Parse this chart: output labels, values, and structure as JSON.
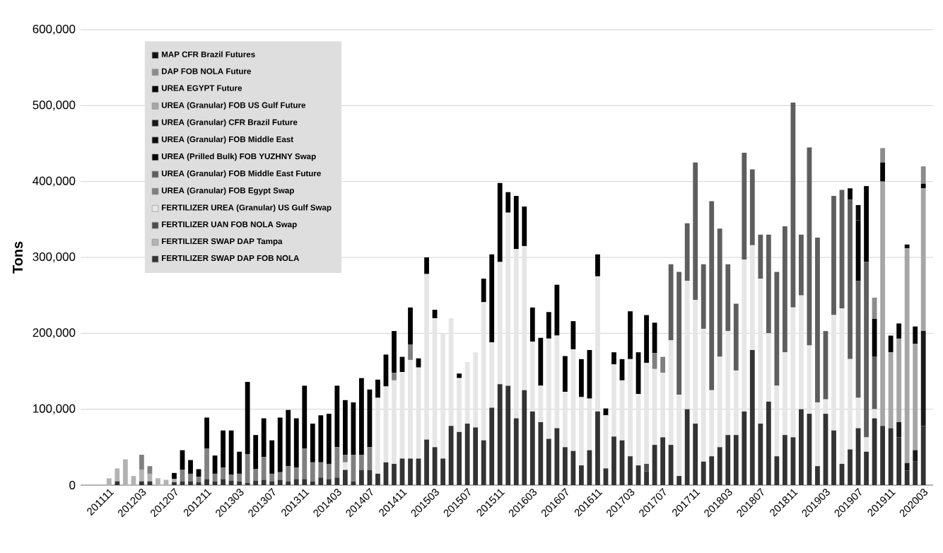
{
  "chart_data": {
    "type": "bar",
    "stacked": true,
    "ylabel": "Tons",
    "categories": [
      "201111",
      null,
      null,
      null,
      "201203",
      null,
      null,
      null,
      "201207",
      null,
      null,
      null,
      "201211",
      null,
      null,
      null,
      "201303",
      null,
      null,
      null,
      "201307",
      null,
      null,
      null,
      "201311",
      null,
      null,
      null,
      "201403",
      null,
      null,
      null,
      "201407",
      null,
      null,
      null,
      "201411",
      null,
      null,
      null,
      "201503",
      null,
      null,
      null,
      "201507",
      null,
      null,
      null,
      "201511",
      null,
      null,
      null,
      "201603",
      null,
      null,
      null,
      "201607",
      null,
      null,
      null,
      "201611",
      null,
      null,
      null,
      "201703",
      null,
      null,
      null,
      "201707",
      null,
      null,
      null,
      "201711",
      null,
      null,
      null,
      "201803",
      null,
      null,
      null,
      "201807",
      null,
      null,
      null,
      "201811",
      null,
      null,
      null,
      "201903",
      null,
      null,
      null,
      "201907",
      null,
      null,
      null,
      "201911",
      null,
      null,
      null,
      "202003"
    ],
    "ylim": [
      0,
      600000
    ],
    "yticks": [
      0,
      {
        "value": 100000,
        "label": "100,000"
      },
      {
        "value": 200000,
        "label": "200,000"
      },
      {
        "value": 300000,
        "label": "300,000"
      },
      {
        "value": 400000,
        "label": "400,000"
      },
      {
        "value": 500000,
        "label": "500,000"
      },
      {
        "value": 600000,
        "label": "600,000"
      }
    ],
    "grid": "y",
    "legend": "top left",
    "series": [
      {
        "name": "FERTILIZER SWAP DAP FOB NOLA",
        "color": "#333333",
        "values": [
          null,
          5000,
          null,
          null,
          5000,
          5000,
          null,
          null,
          4000,
          5000,
          5000,
          4000,
          8000,
          5000,
          8000,
          6000,
          5000,
          3000,
          6000,
          7000,
          5000,
          7000,
          5000,
          8000,
          8000,
          5000,
          10000,
          8000,
          10000,
          20000,
          5000,
          20000,
          20000,
          15000,
          30000,
          28000,
          35000,
          35000,
          35000,
          60000,
          50000,
          35000,
          78000,
          70000,
          81000,
          76000,
          59000,
          102000,
          133000,
          131000,
          88000,
          125000,
          97000,
          83000,
          61000,
          75000,
          50000,
          45000,
          26000,
          46000,
          97000,
          22000,
          64000,
          59000,
          38000,
          26000,
          18000,
          53000,
          63000,
          53000,
          12000,
          100000,
          81000,
          31000,
          38000,
          50000,
          66000,
          66000,
          97000,
          178000,
          81000,
          110000,
          38000,
          66000,
          63000,
          100000,
          94000,
          25000,
          94000,
          72000,
          28000,
          47000,
          75000,
          44000,
          88000,
          78000,
          75000,
          63000,
          19000,
          31000,
          78000
        ]
      },
      {
        "name": "FERTILIZER SWAP DAP Tampa",
        "color": "#b3b3b3",
        "values": [
          9000,
          17000,
          34000,
          12000,
          15000,
          10000,
          9000,
          7000,
          4000,
          null,
          null,
          null,
          null,
          null,
          null,
          null,
          null,
          null,
          null,
          null,
          null,
          null,
          null,
          null,
          null,
          null,
          null,
          null,
          null,
          null,
          null,
          null,
          null,
          null,
          null,
          null,
          null,
          null,
          null,
          null,
          null,
          null,
          null,
          null,
          null,
          null,
          null,
          null,
          null,
          null,
          null,
          null,
          null,
          null,
          null,
          null,
          null,
          null,
          null,
          null,
          null,
          null,
          null,
          null,
          null,
          null,
          null,
          null,
          null,
          null,
          null,
          null,
          null,
          null,
          null,
          null,
          null,
          null,
          null,
          null,
          null,
          null,
          null,
          null,
          null,
          null,
          null,
          null,
          null,
          null,
          null,
          null,
          null,
          null,
          null,
          null,
          null,
          null,
          null,
          null,
          null
        ]
      },
      {
        "name": "FERTILIZER UAN FOB NOLA Swap",
        "color": "#4d4d4d",
        "values": [
          null,
          null,
          null,
          null,
          null,
          null,
          null,
          null,
          null,
          null,
          null,
          null,
          null,
          null,
          null,
          null,
          null,
          null,
          null,
          null,
          null,
          null,
          null,
          null,
          null,
          null,
          null,
          null,
          null,
          null,
          null,
          null,
          null,
          null,
          null,
          null,
          null,
          null,
          null,
          null,
          null,
          null,
          null,
          null,
          null,
          null,
          null,
          null,
          null,
          null,
          null,
          null,
          null,
          null,
          null,
          null,
          null,
          null,
          null,
          null,
          null,
          null,
          null,
          null,
          null,
          null,
          10000,
          null,
          null,
          null,
          null,
          null,
          null,
          null,
          null,
          null,
          null,
          null,
          null,
          null,
          null,
          null,
          null,
          null,
          null,
          null,
          null,
          null,
          null,
          null,
          null,
          null,
          null,
          null,
          null,
          null,
          null,
          null,
          null,
          null,
          null
        ]
      },
      {
        "name": "FERTILIZER UREA (Granular) US Gulf Swap",
        "color": "#e6e6e6",
        "values": [
          null,
          null,
          null,
          null,
          null,
          null,
          null,
          null,
          null,
          null,
          null,
          null,
          null,
          null,
          null,
          null,
          null,
          null,
          null,
          null,
          null,
          null,
          null,
          null,
          null,
          null,
          null,
          null,
          null,
          10000,
          null,
          null,
          null,
          100000,
          100000,
          110000,
          114000,
          130000,
          120000,
          218000,
          170000,
          165000,
          142000,
          71000,
          81000,
          99000,
          182000,
          86000,
          161000,
          228000,
          223000,
          190000,
          92000,
          48000,
          132000,
          122000,
          73000,
          134000,
          90000,
          68000,
          178000,
          70000,
          95000,
          79000,
          128000,
          94000,
          133000,
          100000,
          85000,
          138000,
          107000,
          169000,
          163000,
          175000,
          87000,
          119000,
          137000,
          85000,
          200000,
          138000,
          191000,
          90000,
          93000,
          109000,
          171000,
          150000,
          90000,
          84000,
          19000,
          152000,
          205000,
          119000,
          40000,
          19000,
          12000,
          null,
          null,
          null,
          null,
          null,
          null
        ]
      },
      {
        "name": "UREA (Granular) FOB Egypt Swap",
        "color": "#808080",
        "values": [
          null,
          null,
          null,
          null,
          20000,
          10000,
          null,
          null,
          null,
          15000,
          10000,
          7000,
          40000,
          10000,
          15000,
          8000,
          10000,
          38000,
          15000,
          30000,
          10000,
          10000,
          20000,
          15000,
          40000,
          25000,
          20000,
          20000,
          40000,
          10000,
          35000,
          20000,
          30000,
          null,
          null,
          10000,
          null,
          20000,
          null,
          null,
          null,
          null,
          null,
          null,
          null,
          null,
          null,
          null,
          null,
          null,
          null,
          null,
          null,
          null,
          null,
          null,
          null,
          null,
          null,
          null,
          null,
          null,
          null,
          null,
          null,
          null,
          null,
          21000,
          21000,
          null,
          null,
          null,
          null,
          null,
          null,
          null,
          null,
          null,
          null,
          null,
          null,
          null,
          null,
          null,
          null,
          null,
          null,
          null,
          null,
          null,
          null,
          null,
          null,
          null,
          null,
          null,
          null,
          null,
          null,
          null,
          null
        ]
      },
      {
        "name": "UREA (Granular) FOB Middle East Future",
        "color": "#5e5e5e",
        "values": [
          null,
          null,
          null,
          null,
          null,
          null,
          null,
          null,
          null,
          null,
          null,
          null,
          null,
          null,
          null,
          null,
          null,
          null,
          null,
          null,
          null,
          null,
          null,
          null,
          null,
          null,
          null,
          null,
          null,
          null,
          null,
          null,
          null,
          null,
          null,
          null,
          null,
          null,
          null,
          null,
          null,
          null,
          null,
          null,
          null,
          null,
          null,
          null,
          null,
          null,
          null,
          null,
          null,
          null,
          null,
          null,
          null,
          null,
          null,
          null,
          null,
          null,
          null,
          null,
          null,
          null,
          null,
          null,
          null,
          100000,
          162000,
          76000,
          181000,
          85000,
          249000,
          169000,
          88000,
          88000,
          141000,
          100000,
          58000,
          130000,
          150000,
          166000,
          270000,
          80000,
          261000,
          217000,
          90000,
          157000,
          156000,
          210000,
          154000,
          231000,
          69000,
          null,
          null,
          null,
          null,
          null,
          null
        ]
      },
      {
        "name": "UREA (Prilled Bulk) FOB YUZHNY Swap",
        "color": "#000000",
        "values": [
          null,
          null,
          null,
          null,
          null,
          null,
          null,
          null,
          8000,
          26000,
          18000,
          10000,
          41000,
          24000,
          49000,
          58000,
          29000,
          95000,
          45000,
          51000,
          44000,
          72000,
          74000,
          65000,
          83000,
          51000,
          62000,
          66000,
          81000,
          72000,
          69000,
          101000,
          76000,
          24000,
          42000,
          55000,
          20000,
          49000,
          12000,
          22000,
          11000,
          null,
          null,
          6000,
          null,
          null,
          31000,
          116000,
          104000,
          27000,
          70000,
          52000,
          45000,
          63000,
          35000,
          67000,
          47000,
          37000,
          50000,
          64000,
          29000,
          9000,
          16000,
          28000,
          63000,
          55000,
          63000,
          40000,
          null,
          null,
          null,
          null,
          null,
          null,
          null,
          null,
          null,
          null,
          null,
          null,
          null,
          null,
          null,
          null,
          null,
          null,
          null,
          null,
          null,
          null,
          null,
          15000,
          80000,
          100000,
          50000,
          null,
          null,
          null,
          null,
          null,
          null
        ]
      },
      {
        "name": "UREA (Granular) FOB Middle East",
        "color": "#0d0d0d",
        "values": [
          null,
          null,
          null,
          null,
          null,
          null,
          null,
          null,
          null,
          null,
          null,
          null,
          null,
          null,
          null,
          null,
          null,
          null,
          null,
          null,
          null,
          null,
          null,
          null,
          null,
          null,
          null,
          null,
          null,
          null,
          null,
          null,
          null,
          null,
          null,
          null,
          null,
          null,
          null,
          null,
          null,
          null,
          null,
          null,
          null,
          null,
          null,
          null,
          null,
          null,
          null,
          null,
          null,
          null,
          null,
          null,
          null,
          null,
          null,
          null,
          null,
          null,
          null,
          null,
          null,
          null,
          null,
          null,
          null,
          null,
          null,
          null,
          null,
          null,
          null,
          null,
          null,
          null,
          null,
          null,
          null,
          null,
          null,
          null,
          null,
          null,
          null,
          null,
          null,
          null,
          null,
          null,
          20000,
          null,
          null,
          null,
          null,
          null,
          null,
          null,
          null
        ]
      },
      {
        "name": "UREA (Granular) CFR Brazil Future",
        "color": "#1a1a1a",
        "values": [
          null,
          null,
          null,
          null,
          null,
          null,
          null,
          null,
          null,
          null,
          null,
          null,
          null,
          null,
          null,
          null,
          null,
          null,
          null,
          null,
          null,
          null,
          null,
          null,
          null,
          null,
          null,
          null,
          null,
          null,
          null,
          null,
          null,
          null,
          null,
          null,
          null,
          null,
          null,
          null,
          null,
          null,
          null,
          null,
          null,
          null,
          null,
          null,
          null,
          null,
          null,
          null,
          null,
          null,
          null,
          null,
          null,
          null,
          null,
          null,
          null,
          null,
          null,
          null,
          null,
          null,
          null,
          null,
          null,
          null,
          null,
          null,
          null,
          null,
          null,
          null,
          null,
          null,
          null,
          null,
          null,
          null,
          null,
          null,
          null,
          null,
          null,
          null,
          null,
          null,
          null,
          null,
          null,
          null,
          null,
          null,
          null,
          20000,
          10000,
          15000,
          125000
        ]
      },
      {
        "name": "UREA (Granular) FOB US Gulf Future",
        "color": "#a6a6a6",
        "values": [
          null,
          null,
          null,
          null,
          null,
          null,
          null,
          null,
          null,
          null,
          null,
          null,
          null,
          null,
          null,
          null,
          null,
          null,
          null,
          null,
          null,
          null,
          null,
          null,
          null,
          null,
          null,
          null,
          null,
          null,
          null,
          null,
          null,
          null,
          null,
          null,
          null,
          null,
          null,
          null,
          null,
          null,
          null,
          null,
          null,
          null,
          null,
          null,
          null,
          null,
          null,
          null,
          null,
          null,
          null,
          null,
          null,
          null,
          null,
          null,
          null,
          null,
          null,
          null,
          null,
          null,
          null,
          null,
          null,
          null,
          null,
          null,
          null,
          null,
          null,
          null,
          null,
          null,
          null,
          null,
          null,
          null,
          null,
          null,
          null,
          null,
          null,
          null,
          null,
          null,
          null,
          null,
          null,
          null,
          null,
          322000,
          100000,
          110000,
          283000,
          140000,
          188000
        ]
      },
      {
        "name": "UREA EGYPT Future",
        "color": "#050505",
        "values": [
          null,
          null,
          null,
          null,
          null,
          null,
          null,
          null,
          null,
          null,
          null,
          null,
          null,
          null,
          null,
          null,
          null,
          null,
          null,
          null,
          null,
          null,
          null,
          null,
          null,
          null,
          null,
          null,
          null,
          null,
          null,
          null,
          null,
          null,
          null,
          null,
          null,
          null,
          null,
          null,
          null,
          null,
          null,
          null,
          null,
          null,
          null,
          null,
          null,
          null,
          null,
          null,
          null,
          null,
          null,
          null,
          null,
          null,
          null,
          null,
          null,
          null,
          null,
          null,
          null,
          null,
          null,
          null,
          null,
          null,
          null,
          null,
          null,
          null,
          null,
          null,
          null,
          null,
          null,
          null,
          null,
          null,
          null,
          null,
          null,
          null,
          null,
          null,
          null,
          null,
          null,
          null,
          null,
          null,
          null,
          25000,
          22000,
          20000,
          null,
          23000,
          6000
        ]
      },
      {
        "name": "DAP FOB NOLA Future",
        "color": "#8c8c8c",
        "values": [
          null,
          null,
          null,
          null,
          null,
          null,
          null,
          null,
          null,
          null,
          null,
          null,
          null,
          null,
          null,
          null,
          null,
          null,
          null,
          null,
          null,
          null,
          null,
          null,
          null,
          null,
          null,
          null,
          null,
          null,
          null,
          null,
          null,
          null,
          null,
          null,
          null,
          null,
          null,
          null,
          null,
          null,
          null,
          null,
          null,
          null,
          null,
          null,
          null,
          null,
          null,
          null,
          null,
          null,
          null,
          null,
          null,
          null,
          null,
          null,
          null,
          null,
          null,
          null,
          null,
          null,
          null,
          null,
          null,
          null,
          null,
          null,
          null,
          null,
          null,
          null,
          null,
          null,
          null,
          null,
          null,
          null,
          null,
          null,
          null,
          null,
          null,
          null,
          null,
          null,
          null,
          null,
          null,
          null,
          28000,
          19000,
          null,
          null,
          null,
          null,
          23000
        ]
      },
      {
        "name": "MAP CFR Brazil Futures",
        "color": "#111111",
        "values": [
          null,
          null,
          null,
          null,
          null,
          null,
          null,
          null,
          null,
          null,
          null,
          null,
          null,
          null,
          null,
          null,
          null,
          null,
          null,
          null,
          null,
          null,
          null,
          null,
          null,
          null,
          null,
          null,
          null,
          null,
          null,
          null,
          null,
          null,
          null,
          null,
          null,
          null,
          null,
          null,
          null,
          null,
          null,
          null,
          null,
          null,
          null,
          null,
          null,
          null,
          null,
          null,
          null,
          null,
          null,
          null,
          null,
          null,
          null,
          null,
          null,
          null,
          null,
          null,
          null,
          null,
          null,
          null,
          null,
          null,
          null,
          null,
          null,
          null,
          null,
          null,
          null,
          null,
          null,
          null,
          null,
          null,
          null,
          null,
          null,
          null,
          null,
          null,
          null,
          null,
          null,
          null,
          null,
          null,
          null,
          null,
          null,
          null,
          5000,
          null,
          null
        ]
      }
    ]
  }
}
